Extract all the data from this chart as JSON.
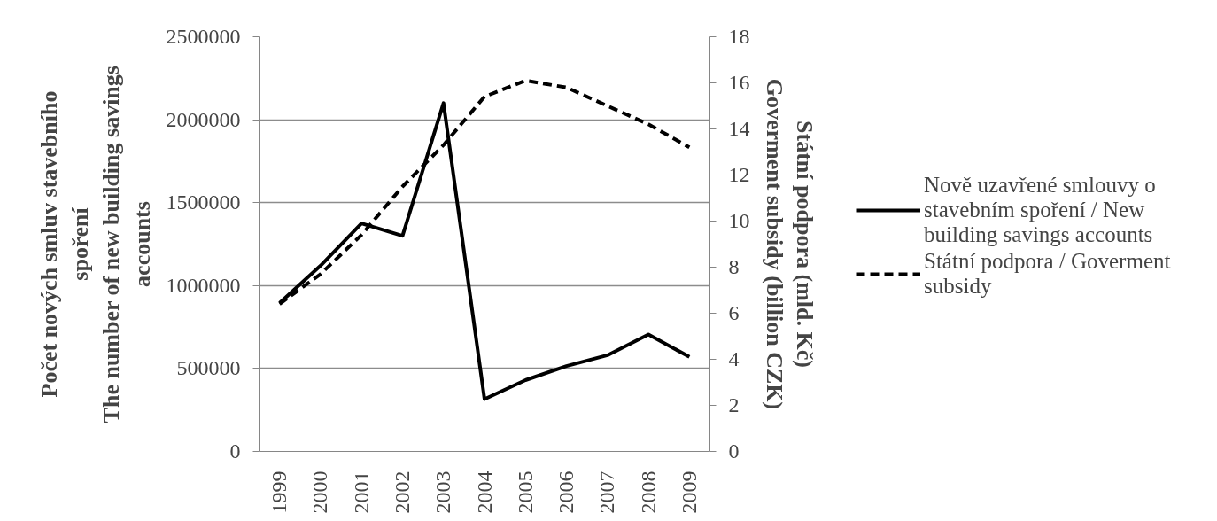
{
  "chart_data": {
    "type": "line",
    "ylabel": "Počet nových smluv stavebního spoření\nThe number of new building savings accounts",
    "y2label": "Státní podpora (mld. Kč)\nGoverment subsidy (billion CZK)",
    "categories": [
      "1999",
      "2000",
      "2001",
      "2002",
      "2003",
      "2004",
      "2005",
      "2006",
      "2007",
      "2008",
      "2009"
    ],
    "series": [
      {
        "name": "Nově uzavřené smlouvy o stavebním spoření / New building savings accounts",
        "color": "#000000",
        "line_style": "solid",
        "values": [
          895000,
          1120000,
          1375000,
          1300000,
          2100000,
          315000,
          430000,
          515000,
          580000,
          705000,
          570000
        ]
      },
      {
        "name": "Státní podpora / Goverment subsidy",
        "color": "#000000",
        "line_style": "dashed",
        "axis": "y2",
        "values": [
          6.4,
          7.7,
          9.4,
          11.5,
          13.3,
          15.4,
          16.1,
          15.8,
          15.0,
          14.2,
          13.2
        ]
      }
    ],
    "ylim": [
      0,
      2500000
    ],
    "yticks": [
      0,
      500000,
      1000000,
      1500000,
      2000000,
      2500000
    ],
    "y2lim": [
      0,
      18
    ],
    "y2ticks": [
      0,
      2,
      4,
      6,
      8,
      10,
      12,
      14,
      16,
      18
    ],
    "grid": "y",
    "legend": "right"
  }
}
